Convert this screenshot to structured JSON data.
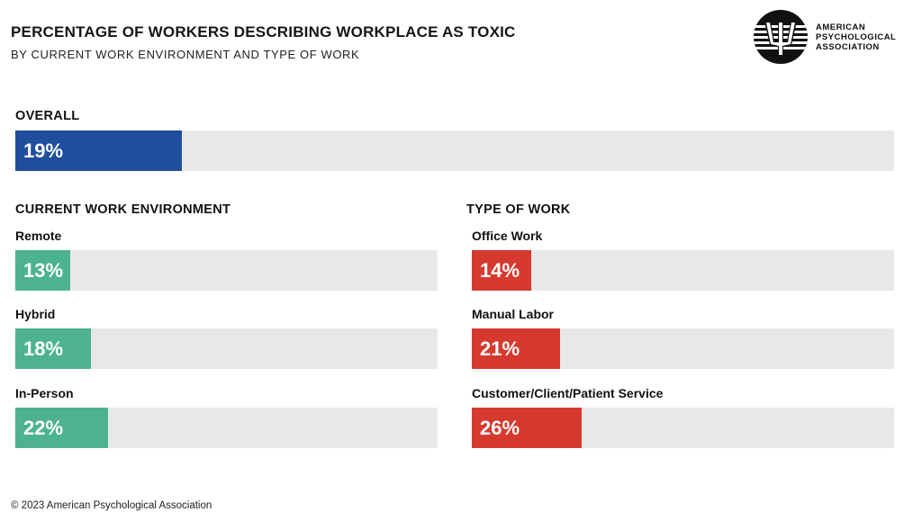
{
  "title": "PERCENTAGE OF WORKERS DESCRIBING WORKPLACE AS TOXIC",
  "subtitle": "BY CURRENT WORK ENVIRONMENT AND TYPE OF WORK",
  "logo": {
    "icon": "apa-psi-logo-icon",
    "line1": "AMERICAN",
    "line2": "PSYCHOLOGICAL",
    "line3": "ASSOCIATION"
  },
  "footer": "© 2023 American Psychological Association",
  "colors": {
    "overall": "#1f4e9c",
    "environment": "#4db38f",
    "work_type": "#d63a2f",
    "track": "#e8e8e8"
  },
  "chart_data": [
    {
      "type": "bar",
      "orientation": "horizontal",
      "section": "OVERALL",
      "categories": [
        ""
      ],
      "values": [
        19
      ],
      "value_labels": [
        "19%"
      ],
      "xlim": [
        0,
        100
      ],
      "unit": "%"
    },
    {
      "type": "bar",
      "orientation": "horizontal",
      "section": "CURRENT WORK ENVIRONMENT",
      "categories": [
        "Remote",
        "Hybrid",
        "In-Person"
      ],
      "values": [
        13,
        18,
        22
      ],
      "value_labels": [
        "13%",
        "18%",
        "22%"
      ],
      "xlim": [
        0,
        100
      ],
      "unit": "%"
    },
    {
      "type": "bar",
      "orientation": "horizontal",
      "section": "TYPE OF WORK",
      "categories": [
        "Office Work",
        "Manual Labor",
        "Customer/Client/Patient Service"
      ],
      "values": [
        14,
        21,
        26
      ],
      "value_labels": [
        "14%",
        "21%",
        "26%"
      ],
      "xlim": [
        0,
        100
      ],
      "unit": "%"
    }
  ]
}
